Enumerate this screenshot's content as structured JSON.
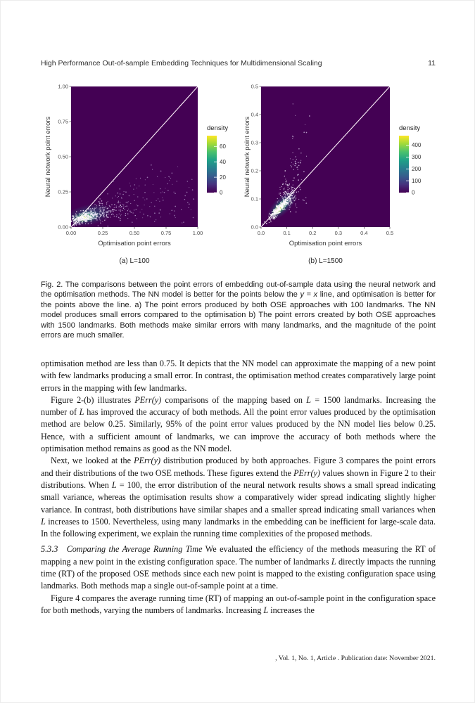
{
  "header": {
    "title": "High Performance Out-of-sample Embedding Techniques for Multidimensional Scaling",
    "page_number": "11"
  },
  "footer": ", Vol. 1, No. 1, Article . Publication date: November 2021.",
  "viridis": [
    "#440154",
    "#46327e",
    "#365c8d",
    "#277f8e",
    "#1fa187",
    "#4ac16d",
    "#a0da39",
    "#fde725"
  ],
  "chart_data": [
    {
      "type": "scatter",
      "variant": "2d-density",
      "caption": "(a) L=100",
      "xlabel": "Optimisation point errors",
      "ylabel": "Neural network point errors",
      "xlim": [
        0,
        1.0
      ],
      "ylim": [
        0,
        1.0
      ],
      "xticks": [
        [
          0,
          "0.00"
        ],
        [
          0.25,
          "0.25"
        ],
        [
          0.5,
          "0.50"
        ],
        [
          0.75,
          "0.75"
        ],
        [
          1,
          "1.00"
        ]
      ],
      "yticks": [
        [
          0,
          "0.00"
        ],
        [
          0.25,
          "0.25"
        ],
        [
          0.5,
          "0.50"
        ],
        [
          0.75,
          "0.75"
        ],
        [
          1,
          "1.00"
        ]
      ],
      "identity_line": true,
      "panel_color": "#440154",
      "line_color": "#fdf0fa",
      "legend": {
        "title": "density",
        "ticks": [
          0,
          20,
          40,
          60
        ],
        "vmax": 74
      },
      "glows": [
        {
          "cx": 0.135,
          "cy": 0.085,
          "rx": 0.2,
          "ry": 0.075,
          "angle": 12,
          "color": "#26828e",
          "opacity": 0.65
        },
        {
          "cx": 0.115,
          "cy": 0.072,
          "rx": 0.115,
          "ry": 0.042,
          "angle": 10,
          "color": "#35b779",
          "opacity": 0.85
        },
        {
          "cx": 0.102,
          "cy": 0.066,
          "rx": 0.068,
          "ry": 0.026,
          "angle": 10,
          "color": "#b5de2b",
          "opacity": 0.95
        },
        {
          "cx": 0.095,
          "cy": 0.063,
          "rx": 0.038,
          "ry": 0.014,
          "angle": 10,
          "color": "#fde725",
          "opacity": 1
        },
        {
          "cx": 0.09,
          "cy": 0.061,
          "rx": 0.02,
          "ry": 0.008,
          "angle": 10,
          "color": "#ffffff",
          "opacity": 0.9
        }
      ],
      "clusters": [
        {
          "kind": "gaussian",
          "cx": 0.1,
          "cy": 0.068,
          "sx": 0.055,
          "sy": 0.016,
          "angle": 12,
          "n": 320,
          "color": "#ffffff",
          "opacity": 0.85
        },
        {
          "kind": "gaussian",
          "cx": 0.19,
          "cy": 0.095,
          "sx": 0.08,
          "sy": 0.028,
          "angle": 10,
          "n": 210,
          "color": "#e8def4",
          "opacity": 0.75,
          "below": true
        },
        {
          "kind": "gaussian",
          "cx": 0.33,
          "cy": 0.135,
          "sx": 0.11,
          "sy": 0.05,
          "angle": 5,
          "n": 110,
          "color": "#d4c6ea",
          "opacity": 0.7,
          "below": true
        },
        {
          "kind": "uniform",
          "x0": 0.28,
          "x1": 0.97,
          "y0": 0.03,
          "y1": 0.36,
          "n": 95,
          "color": "#cbbce5",
          "opacity": 0.6,
          "below": true
        },
        {
          "kind": "uniform",
          "x0": 0.55,
          "x1": 0.9,
          "y0": 0.35,
          "y1": 0.47,
          "n": 6,
          "color": "#cbbce5",
          "opacity": 0.55,
          "below": true
        }
      ]
    },
    {
      "type": "scatter",
      "variant": "2d-density",
      "caption": "(b) L=1500",
      "xlabel": "Optimisation point errors",
      "ylabel": "Neural network point errors",
      "xlim": [
        0,
        0.5
      ],
      "ylim": [
        0,
        0.5
      ],
      "xticks": [
        [
          0,
          "0.0"
        ],
        [
          0.1,
          "0.1"
        ],
        [
          0.2,
          "0.2"
        ],
        [
          0.3,
          "0.3"
        ],
        [
          0.4,
          "0.4"
        ],
        [
          0.5,
          "0.5"
        ]
      ],
      "yticks": [
        [
          0,
          "0.0"
        ],
        [
          0.1,
          "0.1"
        ],
        [
          0.2,
          "0.2"
        ],
        [
          0.3,
          "0.3"
        ],
        [
          0.4,
          "0.4"
        ],
        [
          0.5,
          "0.5"
        ]
      ],
      "identity_line": true,
      "panel_color": "#440154",
      "line_color": "#fdf0fa",
      "legend": {
        "title": "density",
        "ticks": [
          0,
          100,
          200,
          300,
          400
        ],
        "vmax": 480
      },
      "glows": [
        {
          "cx": 0.082,
          "cy": 0.077,
          "rx": 0.075,
          "ry": 0.03,
          "angle": 45,
          "color": "#26828e",
          "opacity": 0.7
        },
        {
          "cx": 0.076,
          "cy": 0.071,
          "rx": 0.052,
          "ry": 0.018,
          "angle": 45,
          "color": "#35b779",
          "opacity": 0.9
        },
        {
          "cx": 0.071,
          "cy": 0.066,
          "rx": 0.036,
          "ry": 0.012,
          "angle": 45,
          "color": "#b5de2b",
          "opacity": 0.95
        },
        {
          "cx": 0.066,
          "cy": 0.061,
          "rx": 0.024,
          "ry": 0.008,
          "angle": 45,
          "color": "#fde725",
          "opacity": 1
        },
        {
          "cx": 0.063,
          "cy": 0.058,
          "rx": 0.015,
          "ry": 0.005,
          "angle": 45,
          "color": "#ffffff",
          "opacity": 0.95
        }
      ],
      "clusters": [
        {
          "kind": "gaussian",
          "cx": 0.075,
          "cy": 0.07,
          "sx": 0.028,
          "sy": 0.006,
          "angle": 45,
          "n": 380,
          "color": "#ffffff",
          "opacity": 0.9
        },
        {
          "kind": "gaussian",
          "cx": 0.105,
          "cy": 0.115,
          "sx": 0.018,
          "sy": 0.028,
          "angle": 0,
          "n": 110,
          "color": "#efe6f8",
          "opacity": 0.8
        },
        {
          "kind": "gaussian",
          "cx": 0.14,
          "cy": 0.22,
          "sx": 0.018,
          "sy": 0.03,
          "angle": 0,
          "n": 30,
          "color": "#e2d5f2",
          "opacity": 0.75
        },
        {
          "kind": "uniform",
          "x0": 0.12,
          "x1": 0.19,
          "y0": 0.27,
          "y1": 0.46,
          "n": 9,
          "color": "#e2d5f2",
          "opacity": 0.7
        },
        {
          "kind": "gaussian",
          "cx": 0.13,
          "cy": 0.11,
          "sx": 0.03,
          "sy": 0.02,
          "angle": 30,
          "n": 25,
          "color": "#dccfee",
          "opacity": 0.7
        }
      ]
    }
  ],
  "figure": {
    "caption_segments": [
      [
        "Fig. 2.  The comparisons between the point errors of embedding out-of-sample data using the neural network and the optimisation methods. The NN model is better for the points below the ",
        "n"
      ],
      [
        "y",
        "i"
      ],
      [
        " = ",
        "n"
      ],
      [
        "x",
        "i"
      ],
      [
        " line, and optimisation is better for the points above the line. a) The point errors produced by both OSE approaches with 100 landmarks. The NN model produces small errors compared to the optimisation b) The point errors created by both OSE approaches with 1500 landmarks. Both methods make similar errors with many landmarks, and the magnitude of the point errors are much smaller.",
        "n"
      ]
    ]
  },
  "body": {
    "paragraphs": [
      {
        "segments": [
          [
            "optimisation method are less than 0.75. It depicts that the NN model can approximate the mapping of a new point with few landmarks producing a small error. In contrast, the optimisation method creates comparatively large point errors in the mapping with few landmarks.",
            "n"
          ]
        ]
      },
      {
        "segments": [
          [
            "Figure 2-(b) illustrates ",
            "n"
          ],
          [
            "PErr(y)",
            "i"
          ],
          [
            " comparisons of the mapping based on ",
            "n"
          ],
          [
            "L",
            "i"
          ],
          [
            " = 1500 landmarks. Increasing the number of ",
            "n"
          ],
          [
            "L",
            "i"
          ],
          [
            " has improved the accuracy of both methods. All the point error values produced by the optimisation method are below 0.25. Similarly, 95% of the point error values produced by the NN model lies below 0.25. Hence, with a sufficient amount of landmarks, we can improve the accuracy of both methods where the optimisation method remains as good as the NN model.",
            "n"
          ]
        ]
      },
      {
        "segments": [
          [
            "Next, we looked at the ",
            "n"
          ],
          [
            "PErr(y)",
            "i"
          ],
          [
            " distribution produced by both approaches. Figure 3 compares the point errors and their distributions of the two OSE methods. These figures extend the ",
            "n"
          ],
          [
            "PErr(y)",
            "i"
          ],
          [
            " values shown in Figure 2 to their distributions. When ",
            "n"
          ],
          [
            "L",
            "i"
          ],
          [
            " = 100, the error distribution of the neural network results shows a small spread indicating small variance, whereas the optimisation results show a comparatively wider spread indicating slightly higher variance. In contrast, both distributions have similar shapes and a smaller spread indicating small variances when ",
            "n"
          ],
          [
            "L",
            "i"
          ],
          [
            " increases to 1500. Nevertheless, using many landmarks in the embedding can be inefficient for large-scale data. In the following experiment, we explain the running time complexities of the proposed methods.",
            "n"
          ]
        ]
      },
      {
        "segments": [
          [
            "5.3.3 Comparing the Average Running Time",
            "i"
          ],
          [
            " We evaluated the efficiency of the methods measuring the RT of mapping a new point in the existing configuration space. The number of landmarks ",
            "n"
          ],
          [
            "L",
            "i"
          ],
          [
            " directly impacts the running time (RT) of the proposed OSE methods since each new point is mapped to the existing configuration space using landmarks. Both methods map a single out-of-sample point at a time.",
            "n"
          ]
        ]
      },
      {
        "segments": [
          [
            "Figure 4 compares the average running time (RT) of mapping an out-of-sample point in the configuration space for both methods, varying the numbers of landmarks. Increasing ",
            "n"
          ],
          [
            "L",
            "i"
          ],
          [
            " increases the",
            "n"
          ]
        ]
      }
    ]
  }
}
